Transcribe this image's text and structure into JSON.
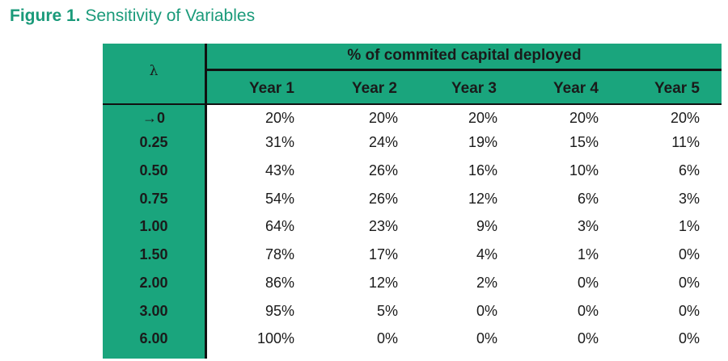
{
  "figure": {
    "label": "Figure 1.",
    "title": "Sensitivity of Variables"
  },
  "table": {
    "row_header": "λ",
    "super_header": "% of commited capital deployed",
    "columns": [
      "Year 1",
      "Year 2",
      "Year 3",
      "Year 4",
      "Year 5"
    ],
    "rows": [
      {
        "label": "→0",
        "values": [
          "20%",
          "20%",
          "20%",
          "20%",
          "20%"
        ]
      },
      {
        "label": "0.25",
        "values": [
          "31%",
          "24%",
          "19%",
          "15%",
          "11%"
        ]
      },
      {
        "label": "0.50",
        "values": [
          "43%",
          "26%",
          "16%",
          "10%",
          "6%"
        ]
      },
      {
        "label": "0.75",
        "values": [
          "54%",
          "26%",
          "12%",
          "6%",
          "3%"
        ]
      },
      {
        "label": "1.00",
        "values": [
          "64%",
          "23%",
          "9%",
          "3%",
          "1%"
        ]
      },
      {
        "label": "1.50",
        "values": [
          "78%",
          "17%",
          "4%",
          "1%",
          "0%"
        ]
      },
      {
        "label": "2.00",
        "values": [
          "86%",
          "12%",
          "2%",
          "0%",
          "0%"
        ]
      },
      {
        "label": "3.00",
        "values": [
          "95%",
          "5%",
          "0%",
          "0%",
          "0%"
        ]
      },
      {
        "label": "6.00",
        "values": [
          "100%",
          "0%",
          "0%",
          "0%",
          "0%"
        ]
      }
    ]
  },
  "colors": {
    "accent": "#1aa57d",
    "title": "#1a9a7a"
  }
}
